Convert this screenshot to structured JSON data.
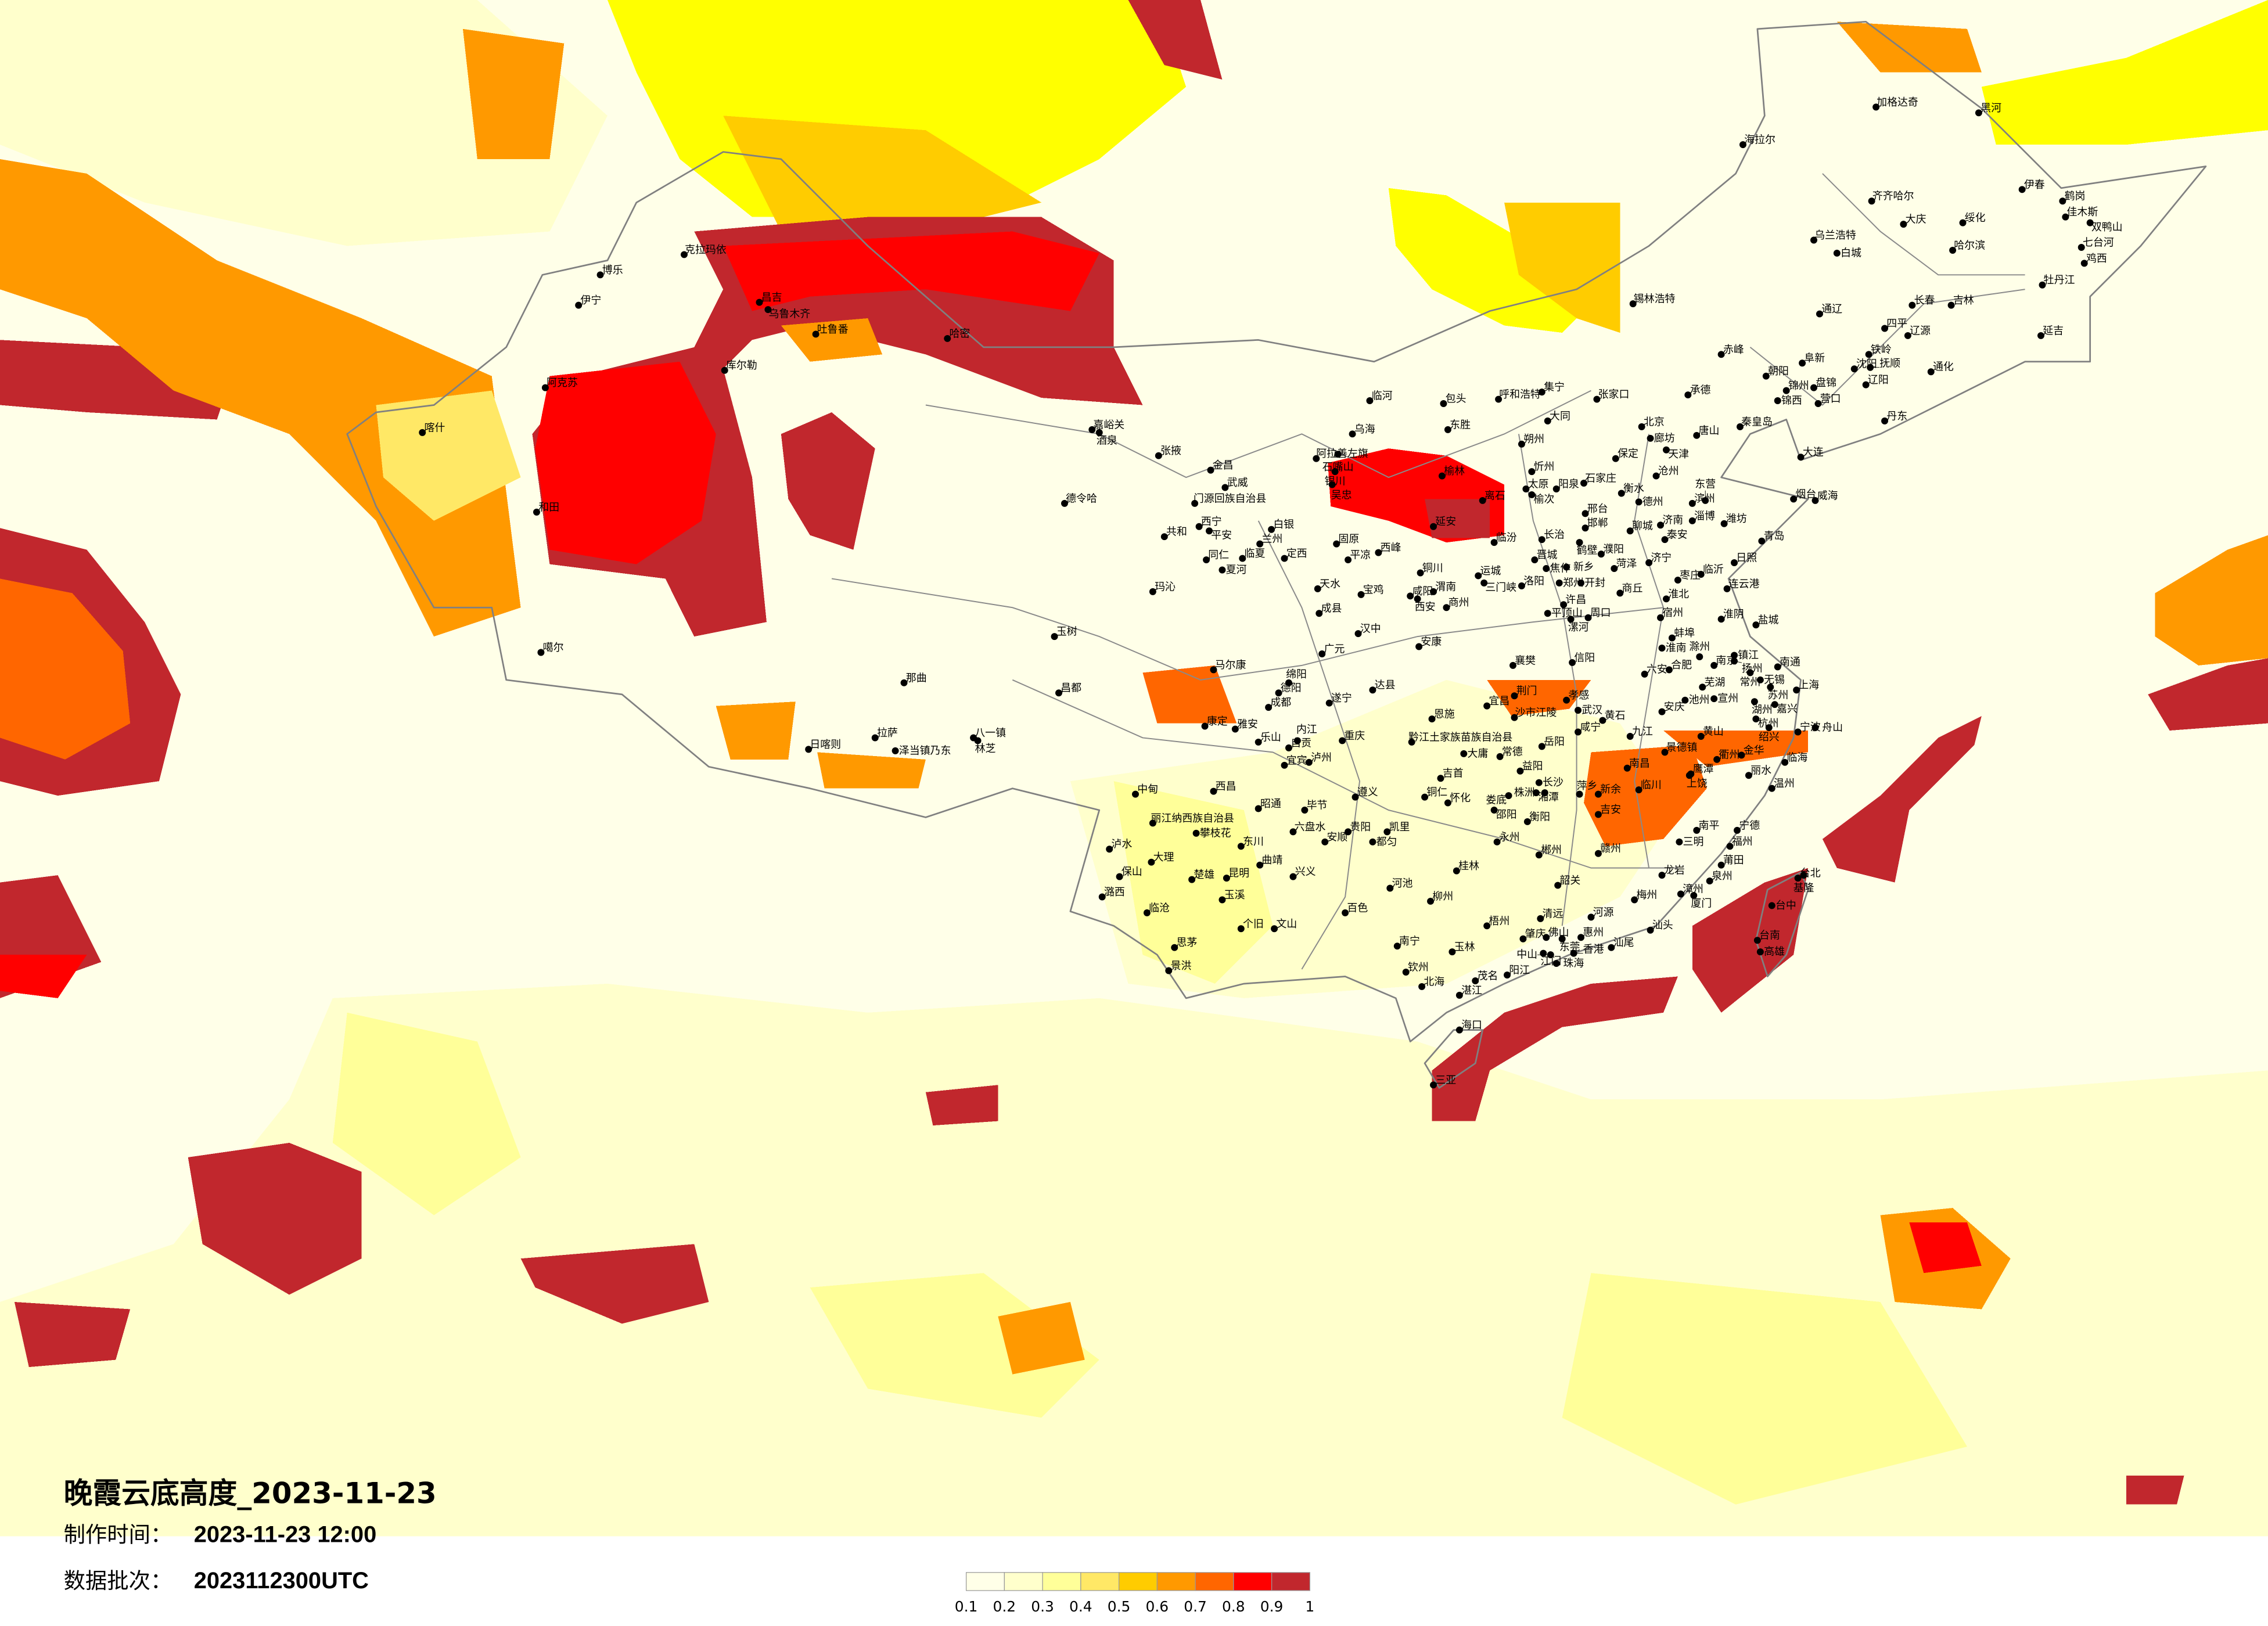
{
  "title": {
    "main": "晚霞云底高度_2023-11-23",
    "made_label": "制作时间：",
    "made_value": "2023-11-23 12:00",
    "batch_label": "数据批次：",
    "batch_value": "2023112300UTC"
  },
  "legend": {
    "ticks": [
      "0.1",
      "0.2",
      "0.3",
      "0.4",
      "0.5",
      "0.6",
      "0.7",
      "0.8",
      "0.9",
      "1"
    ],
    "colors": [
      "#FFFFE8",
      "#FFFFCC",
      "#FFFF99",
      "#FFE866",
      "#FFCC00",
      "#FF9900",
      "#FF6600",
      "#FF0000",
      "#C1272D"
    ],
    "background_color": "#FFFFE8",
    "border_color": "#808080"
  },
  "cities": [
    "克拉玛依",
    "博乐",
    "伊宁",
    "昌吉",
    "乌鲁木齐",
    "吐鲁番",
    "哈密",
    "库尔勒",
    "阿克苏",
    "喀什",
    "和田",
    "噶尔",
    "嘉峪关",
    "酒泉",
    "张掖",
    "金昌",
    "武威",
    "门源回族自治县",
    "德令哈",
    "西宁",
    "平安",
    "共和",
    "白银",
    "兰州",
    "临夏",
    "同仁",
    "夏河",
    "定西",
    "玛沁",
    "玉树",
    "临河",
    "乌海",
    "阿拉善左旗",
    "石嘴山",
    "银川",
    "吴忠",
    "固原",
    "平凉",
    "西峰",
    "延安",
    "铜川",
    "天水",
    "宝鸡",
    "咸阳",
    "西安",
    "渭南",
    "成县",
    "汉中",
    "安康",
    "那曲",
    "昌都",
    "拉萨",
    "日喀则",
    "泽当镇乃东",
    "八一镇",
    "林芝",
    "马尔康",
    "康定",
    "雅安",
    "成都",
    "乐山",
    "德阳",
    "绵阳",
    "自贡",
    "中甸",
    "西昌",
    "丽江纳西族自治县",
    "攀枝花",
    "泸水",
    "大理",
    "保山",
    "潞西",
    "楚雄",
    "昆明",
    "玉溪",
    "曲靖",
    "东川",
    "昭通",
    "临沧",
    "个旧",
    "文山",
    "思茅",
    "景洪",
    "锡林浩特",
    "呼和浩特",
    "包头",
    "东胜",
    "榆林",
    "离石",
    "临汾",
    "运城",
    "三门峡",
    "商州",
    "集宁",
    "张家口",
    "大同",
    "朔州",
    "忻州",
    "太原",
    "榆次",
    "阳泉",
    "石家庄",
    "保定",
    "北京",
    "廊坊",
    "天津",
    "唐山",
    "承德",
    "秦皇岛",
    "沧州",
    "衡水",
    "德州",
    "邢台",
    "邯郸",
    "聊城",
    "济南",
    "泰安",
    "淄博",
    "滨州",
    "东营",
    "潍坊",
    "烟台",
    "威海",
    "青岛",
    "日照",
    "临沂",
    "枣庄",
    "济宁",
    "菏泽",
    "濮阳",
    "长治",
    "晋城",
    "焦作",
    "新乡",
    "鹤壁",
    "洛阳",
    "郑州",
    "开封",
    "商丘",
    "连云港",
    "淮北",
    "宿州",
    "淮阴",
    "盐城",
    "许昌",
    "平顶山",
    "漯河",
    "周口",
    "大连",
    "丹东",
    "营口",
    "锦州",
    "锦西",
    "盘锦",
    "辽阳",
    "沈阳",
    "抚顺",
    "阜新",
    "朝阳",
    "铁岭",
    "通化",
    "赤峰",
    "加格达奇",
    "黑河",
    "海拉尔",
    "伊春",
    "齐齐哈尔",
    "鹤岗",
    "大庆",
    "绥化",
    "佳木斯",
    "双鸭山",
    "乌兰浩特",
    "白城",
    "哈尔滨",
    "七台河",
    "鸡西",
    "牡丹江",
    "长春",
    "吉林",
    "通辽",
    "四平",
    "辽源",
    "延吉",
    "广元",
    "达县",
    "遂宁",
    "恩施",
    "宜昌",
    "荆门",
    "沙市江陵",
    "孝感",
    "武汉",
    "黄石",
    "咸宁",
    "襄樊",
    "信阳",
    "合肥",
    "六安",
    "南京",
    "芜湖",
    "安庆",
    "九江",
    "黄山",
    "景德镇",
    "重庆",
    "内江",
    "泸州",
    "宜宾",
    "黔江土家族苗族自治县",
    "大庸",
    "常德",
    "岳阳",
    "益阳",
    "长沙",
    "湘潭",
    "株洲",
    "娄底",
    "吉首",
    "铜仁",
    "怀化",
    "邵阳",
    "衡阳",
    "南昌",
    "鹰潭",
    "临川",
    "新余",
    "萍乡",
    "吉安",
    "赣州",
    "遵义",
    "毕节",
    "贵阳",
    "凯里",
    "都匀",
    "安顺",
    "六盘水",
    "永州",
    "郴州",
    "南平",
    "三明",
    "兴义",
    "桂林",
    "河池",
    "柳州",
    "百色",
    "韶关",
    "龙岩",
    "梅州",
    "漳州",
    "厦门",
    "泉州",
    "莆田",
    "南宁",
    "玉林",
    "钦州",
    "北海",
    "湛江",
    "茂名",
    "阳江",
    "梧州",
    "清远",
    "河源",
    "肇庆",
    "佛山",
    "东莞",
    "惠州",
    "江门",
    "中山",
    "珠海",
    "香港",
    "汕尾",
    "汕头",
    "海口",
    "三亚",
    "蚌埠",
    "淮南",
    "滁州",
    "镇江",
    "扬州",
    "南通",
    "常州",
    "无锡",
    "苏州",
    "上海",
    "湖州",
    "嘉兴",
    "杭州",
    "绍兴",
    "宁波",
    "舟山",
    "金华",
    "衢州",
    "上饶",
    "丽水",
    "临海",
    "温州",
    "宁德",
    "福州",
    "宣州",
    "池州",
    "台北",
    "基隆",
    "台中",
    "台南",
    "高雄"
  ]
}
